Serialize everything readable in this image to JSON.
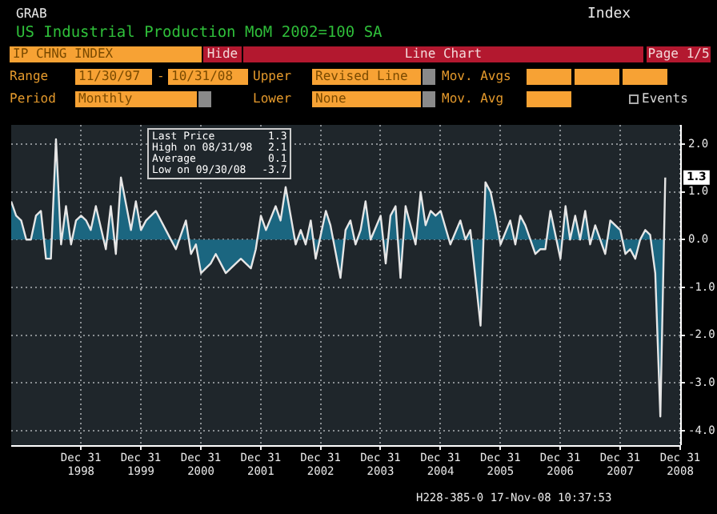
{
  "chart_data": {
    "type": "area",
    "title": "US Industrial Production MoM 2002=100 SA",
    "x": [
      "1997-11",
      "1997-12",
      "1998-01",
      "1998-02",
      "1998-03",
      "1998-04",
      "1998-05",
      "1998-06",
      "1998-07",
      "1998-08",
      "1998-09",
      "1998-10",
      "1998-11",
      "1998-12",
      "1999-01",
      "1999-02",
      "1999-03",
      "1999-04",
      "1999-06",
      "1999-07",
      "1999-08",
      "1999-09",
      "1999-11",
      "1999-12",
      "2000-01",
      "2000-02",
      "2000-04",
      "2000-06",
      "2000-08",
      "2000-10",
      "2000-11",
      "2000-12",
      "2001-01",
      "2001-03",
      "2001-04",
      "2001-06",
      "2001-08",
      "2001-09",
      "2001-11",
      "2001-12",
      "2002-01",
      "2002-02",
      "2002-04",
      "2002-05",
      "2002-06",
      "2002-08",
      "2002-09",
      "2002-10",
      "2002-11",
      "2002-12",
      "2003-02",
      "2003-03",
      "2003-05",
      "2003-06",
      "2003-07",
      "2003-08",
      "2003-09",
      "2003-10",
      "2003-11",
      "2004-01",
      "2004-02",
      "2004-03",
      "2004-04",
      "2004-05",
      "2004-06",
      "2004-08",
      "2004-09",
      "2004-10",
      "2004-11",
      "2004-12",
      "2005-01",
      "2005-03",
      "2005-05",
      "2005-06",
      "2005-07",
      "2005-09",
      "2005-10",
      "2005-11",
      "2005-12",
      "2006-01",
      "2006-03",
      "2006-04",
      "2006-05",
      "2006-06",
      "2006-08",
      "2006-09",
      "2006-10",
      "2006-11",
      "2007-01",
      "2007-02",
      "2007-03",
      "2007-04",
      "2007-05",
      "2007-06",
      "2007-07",
      "2007-08",
      "2007-10",
      "2007-11",
      "2008-01",
      "2008-02",
      "2008-03",
      "2008-04",
      "2008-05",
      "2008-06",
      "2008-07",
      "2008-08",
      "2008-09",
      "2008-10"
    ],
    "series": [
      {
        "color": "#1b6680",
        "values": [
          0.8,
          0.5,
          0.4,
          0,
          0,
          0.5,
          0.6,
          -0.4,
          -0.4,
          2.1,
          -0.1,
          0.7,
          -0.1,
          0.4,
          0.5,
          0.4,
          0.2,
          0.7,
          -0.2,
          0.7,
          -0.3,
          1.3,
          0.2,
          0.8,
          0.2,
          0.4,
          0.6,
          0.2,
          -0.2,
          0.4,
          -0.3,
          -0.1,
          -0.7,
          -0.5,
          -0.3,
          -0.7,
          -0.5,
          -0.4,
          -0.6,
          -0.2,
          0.5,
          0.2,
          0.7,
          0.4,
          1.1,
          -0.1,
          0.2,
          -0.1,
          0.4,
          -0.4,
          0.6,
          0.3,
          -0.8,
          0.2,
          0.4,
          -0.1,
          0.2,
          0.8,
          0,
          0.5,
          -0.5,
          0.5,
          0.7,
          -0.8,
          0.7,
          -0.1,
          1.0,
          0.3,
          0.6,
          0.5,
          0.6,
          -0.1,
          0.4,
          0,
          0.2,
          -1.8,
          1.2,
          1.0,
          0.5,
          -0.1,
          0.4,
          -0.1,
          0.5,
          0.3,
          -0.3,
          -0.2,
          -0.2,
          0.6,
          -0.4,
          0.7,
          0,
          0.5,
          0,
          0.6,
          -0.1,
          0.3,
          -0.3,
          0.4,
          0.2,
          -0.3,
          -0.2,
          -0.4,
          0,
          0.2,
          0.1,
          -0.7,
          -3.7,
          1.3
        ]
      }
    ],
    "xlim": [
      "1997-11-01",
      "2008-12-31"
    ],
    "xticks": [
      {
        "value": "1998-12-31",
        "label": "Dec 31\n1998"
      },
      {
        "value": "1999-12-31",
        "label": "Dec 31\n1999"
      },
      {
        "value": "2000-12-31",
        "label": "Dec 31\n2000"
      },
      {
        "value": "2001-12-31",
        "label": "Dec 31\n2001"
      },
      {
        "value": "2002-12-31",
        "label": "Dec 31\n2002"
      },
      {
        "value": "2003-12-31",
        "label": "Dec 31\n2003"
      },
      {
        "value": "2004-12-31",
        "label": "Dec 31\n2004"
      },
      {
        "value": "2005-12-31",
        "label": "Dec 31\n2005"
      },
      {
        "value": "2006-12-31",
        "label": "Dec 31\n2006"
      },
      {
        "value": "2007-12-31",
        "label": "Dec 31\n2007"
      },
      {
        "value": "2008-12-31",
        "label": "Dec 31\n2008"
      }
    ],
    "ylim": [
      -4.3,
      2.4
    ],
    "yticks": [
      {
        "value": 2,
        "label": "2.0"
      },
      {
        "value": 1,
        "label": "1.0"
      },
      {
        "value": 0,
        "label": "0.0"
      },
      {
        "value": -1,
        "label": "-1.0"
      },
      {
        "value": -2,
        "label": "-2.0"
      },
      {
        "value": -3,
        "label": "-3.0"
      },
      {
        "value": -4,
        "label": "-4.0"
      }
    ],
    "grid": true,
    "legend": false,
    "annotations": [
      "GRAB",
      "Index",
      "IP CHNG INDEX",
      "Hide",
      "Line Chart",
      "Page 1/5",
      "Range",
      "11/30/97",
      "-",
      "10/31/08",
      "Upper",
      "Revised Line",
      "Mov. Avgs",
      "Period",
      "Monthly",
      "Lower",
      "None",
      "Mov. Avg",
      "Events",
      "Last Price",
      "1.3",
      "High on 08/31/98",
      "2.1",
      "Average",
      "0.1",
      "Low on 09/30/08",
      "-3.7",
      "H228-385-0 17-Nov-08 10:37:53",
      {
        "text": "1.3",
        "x": "2008-10",
        "y": 1.3
      }
    ]
  }
}
